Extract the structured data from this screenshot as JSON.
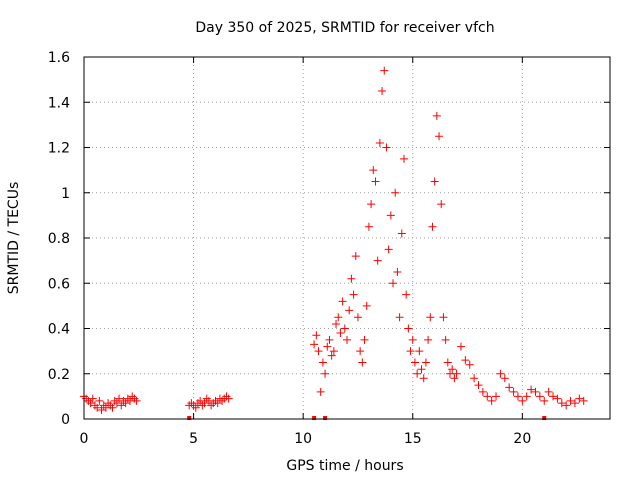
{
  "chart_data": {
    "type": "scatter",
    "title": "Day 350 of 2025, SRMTID for receiver vfch",
    "xlabel": "GPS time / hours",
    "ylabel": "SRMTID / TECUs",
    "xlim": [
      0,
      24
    ],
    "ylim": [
      0,
      1.6
    ],
    "xticks": [
      0,
      5,
      10,
      15,
      20
    ],
    "yticks": [
      0,
      0.2,
      0.4,
      0.6,
      0.8,
      1,
      1.2,
      1.4,
      1.6
    ],
    "xtick_labels": [
      "0",
      "5",
      "10",
      "15",
      "20"
    ],
    "ytick_labels": [
      "0",
      "0.2",
      "0.4",
      "0.6",
      "0.8",
      "1",
      "1.2",
      "1.4",
      "1.6"
    ],
    "grid": true,
    "marker": "+",
    "color": "#ff0000",
    "series": [
      {
        "name": "SRMTID",
        "x": [
          0.0,
          0.1,
          0.2,
          0.3,
          0.4,
          0.5,
          0.6,
          0.7,
          0.8,
          0.9,
          1.0,
          1.1,
          1.2,
          1.3,
          1.4,
          1.5,
          1.6,
          1.7,
          1.8,
          1.9,
          2.0,
          2.1,
          2.2,
          2.3,
          2.4,
          4.8,
          4.9,
          5.0,
          5.1,
          5.2,
          5.3,
          5.4,
          5.5,
          5.6,
          5.7,
          5.8,
          5.9,
          6.0,
          6.1,
          6.2,
          6.3,
          6.4,
          6.5,
          6.6,
          10.5,
          10.6,
          10.7,
          10.8,
          10.9,
          11.0,
          11.1,
          11.2,
          11.3,
          11.4,
          11.5,
          11.6,
          11.7,
          11.8,
          11.9,
          12.0,
          12.1,
          12.2,
          12.3,
          12.4,
          12.5,
          12.6,
          12.7,
          12.8,
          12.9,
          13.0,
          13.1,
          13.2,
          13.3,
          13.4,
          13.5,
          13.6,
          13.7,
          13.8,
          13.9,
          14.0,
          14.1,
          14.2,
          14.3,
          14.4,
          14.5,
          14.6,
          14.7,
          14.8,
          14.9,
          15.0,
          15.1,
          15.2,
          15.3,
          15.4,
          15.5,
          15.6,
          15.7,
          15.8,
          15.9,
          16.0,
          16.1,
          16.2,
          16.3,
          16.4,
          16.5,
          16.6,
          16.7,
          16.8,
          16.9,
          17.0,
          17.2,
          17.4,
          17.6,
          17.8,
          18.0,
          18.2,
          18.4,
          18.6,
          18.8,
          19.0,
          19.2,
          19.4,
          19.6,
          19.8,
          20.0,
          20.2,
          20.4,
          20.6,
          20.8,
          21.0,
          21.2,
          21.4,
          21.6,
          21.8,
          22.0,
          22.2,
          22.4,
          22.6,
          22.8
        ],
        "y": [
          0.1,
          0.09,
          0.08,
          0.07,
          0.09,
          0.06,
          0.05,
          0.08,
          0.04,
          0.06,
          0.05,
          0.07,
          0.06,
          0.05,
          0.08,
          0.07,
          0.09,
          0.06,
          0.08,
          0.07,
          0.09,
          0.08,
          0.1,
          0.09,
          0.08,
          0.06,
          0.07,
          0.06,
          0.05,
          0.07,
          0.08,
          0.06,
          0.07,
          0.09,
          0.08,
          0.06,
          0.07,
          0.08,
          0.07,
          0.09,
          0.08,
          0.09,
          0.1,
          0.09,
          0.33,
          0.37,
          0.3,
          0.12,
          0.25,
          0.2,
          0.32,
          0.35,
          0.28,
          0.3,
          0.42,
          0.45,
          0.38,
          0.52,
          0.4,
          0.35,
          0.48,
          0.62,
          0.55,
          0.72,
          0.45,
          0.3,
          0.25,
          0.35,
          0.5,
          0.85,
          0.95,
          1.1,
          1.05,
          0.7,
          1.22,
          1.45,
          1.54,
          1.2,
          0.75,
          0.9,
          0.6,
          1.0,
          0.65,
          0.45,
          0.82,
          1.15,
          0.55,
          0.4,
          0.3,
          0.35,
          0.25,
          0.2,
          0.3,
          0.22,
          0.18,
          0.25,
          0.35,
          0.45,
          0.85,
          1.05,
          1.34,
          1.25,
          0.95,
          0.45,
          0.35,
          0.25,
          0.2,
          0.22,
          0.18,
          0.2,
          0.32,
          0.26,
          0.24,
          0.18,
          0.15,
          0.12,
          0.1,
          0.08,
          0.1,
          0.2,
          0.18,
          0.14,
          0.12,
          0.1,
          0.08,
          0.1,
          0.13,
          0.12,
          0.1,
          0.08,
          0.12,
          0.1,
          0.09,
          0.07,
          0.06,
          0.08,
          0.07,
          0.09,
          0.08
        ]
      }
    ],
    "axis_markers_x": [
      4.8,
      10.5,
      11.0,
      21.0
    ]
  }
}
